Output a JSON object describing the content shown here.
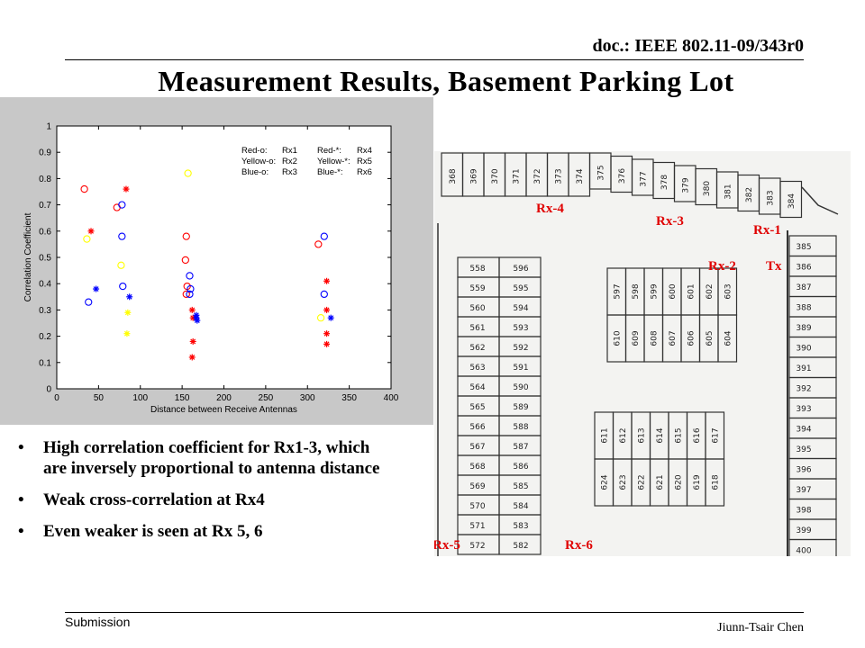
{
  "header": {
    "doc_id": "doc.: IEEE 802.11-09/343r0"
  },
  "slide": {
    "title": "Measurement Results, Basement Parking Lot"
  },
  "bullets": [
    {
      "text": "High correlation coefficient for Rx1-3, which are inversely proportional to antenna distance"
    },
    {
      "text": "Weak cross-correlation at Rx4"
    },
    {
      "text": "Even weaker is seen at Rx 5, 6"
    }
  ],
  "footer": {
    "left": "Submission",
    "right": "Jiunn-Tsair Chen"
  },
  "colors": {
    "red": "#ff0000",
    "yellow": "#ffff00",
    "blue": "#0000ff",
    "map_label": "#e00000",
    "panel_bg": "#c8c8c8"
  },
  "chart_data": {
    "type": "scatter",
    "xlabel": "Distance between Receive Antennas",
    "ylabel": "Correlation Coefficient",
    "xlim": [
      0,
      400
    ],
    "ylim": [
      0,
      1
    ],
    "xticks": [
      0,
      50,
      100,
      150,
      200,
      250,
      300,
      350,
      400
    ],
    "yticks": [
      0,
      0.1,
      0.2,
      0.3,
      0.4,
      0.5,
      0.6,
      0.7,
      0.8,
      0.9,
      1
    ],
    "grid": false,
    "legend": {
      "placement": "top-right",
      "rows": [
        [
          "Red-o:",
          "Rx1",
          "Red-*:",
          "Rx4"
        ],
        [
          "Yellow-o:",
          "Rx2",
          "Yellow-*:",
          "Rx5"
        ],
        [
          "Blue-o:",
          "Rx3",
          "Blue-*:",
          "Rx6"
        ]
      ]
    },
    "series": [
      {
        "name": "Rx1",
        "color": "red",
        "marker": "o",
        "points": [
          [
            33,
            0.76
          ],
          [
            72,
            0.69
          ],
          [
            155,
            0.58
          ],
          [
            154,
            0.49
          ],
          [
            156,
            0.39
          ],
          [
            155,
            0.36
          ],
          [
            313,
            0.55
          ]
        ]
      },
      {
        "name": "Rx2",
        "color": "yellow",
        "marker": "o",
        "points": [
          [
            36,
            0.57
          ],
          [
            77,
            0.47
          ],
          [
            157,
            0.82
          ],
          [
            316,
            0.27
          ]
        ]
      },
      {
        "name": "Rx3",
        "color": "blue",
        "marker": "o",
        "points": [
          [
            38,
            0.33
          ],
          [
            78,
            0.7
          ],
          [
            78,
            0.58
          ],
          [
            79,
            0.39
          ],
          [
            159,
            0.43
          ],
          [
            160,
            0.38
          ],
          [
            159,
            0.36
          ],
          [
            320,
            0.58
          ],
          [
            320,
            0.36
          ]
        ]
      },
      {
        "name": "Rx4",
        "color": "red",
        "marker": "*",
        "points": [
          [
            41,
            0.6
          ],
          [
            83,
            0.76
          ],
          [
            162,
            0.3
          ],
          [
            163,
            0.27
          ],
          [
            163,
            0.18
          ],
          [
            162,
            0.12
          ],
          [
            323,
            0.41
          ],
          [
            323,
            0.3
          ],
          [
            323,
            0.21
          ],
          [
            323,
            0.17
          ]
        ]
      },
      {
        "name": "Rx5",
        "color": "yellow",
        "marker": "*",
        "points": [
          [
            85,
            0.29
          ],
          [
            84,
            0.21
          ]
        ]
      },
      {
        "name": "Rx6",
        "color": "blue",
        "marker": "*",
        "points": [
          [
            47,
            0.38
          ],
          [
            87,
            0.35
          ],
          [
            167,
            0.28
          ],
          [
            167,
            0.27
          ],
          [
            168,
            0.26
          ],
          [
            328,
            0.27
          ]
        ]
      }
    ]
  },
  "floor_map": {
    "labels": [
      "Rx-4",
      "Rx-3",
      "Rx-1",
      "Rx-2",
      "Tx",
      "Rx-5",
      "Rx-6"
    ],
    "top_row": [
      "368",
      "369",
      "370",
      "371",
      "372",
      "373",
      "374",
      "375",
      "376",
      "377",
      "378",
      "379",
      "380",
      "381",
      "382",
      "383",
      "384"
    ],
    "right_col": [
      "385",
      "386",
      "387",
      "388",
      "389",
      "390",
      "391",
      "392",
      "393",
      "394",
      "395",
      "396",
      "397",
      "398",
      "399",
      "400"
    ],
    "left_col_a": [
      "558",
      "559",
      "560",
      "561",
      "562",
      "563",
      "564",
      "565",
      "566",
      "567",
      "568",
      "569",
      "570",
      "571",
      "572"
    ],
    "left_col_b": [
      "596",
      "595",
      "594",
      "593",
      "592",
      "591",
      "590",
      "589",
      "588",
      "587",
      "586",
      "585",
      "584",
      "583",
      "582"
    ],
    "block1_top": [
      "597",
      "598",
      "599",
      "600",
      "601",
      "602",
      "603"
    ],
    "block1_bottom": [
      "610",
      "609",
      "608",
      "607",
      "606",
      "605",
      "604"
    ],
    "block2_top": [
      "611",
      "612",
      "613",
      "614",
      "615",
      "616",
      "617"
    ],
    "block2_bottom": [
      "624",
      "623",
      "622",
      "621",
      "620",
      "619",
      "618"
    ]
  }
}
